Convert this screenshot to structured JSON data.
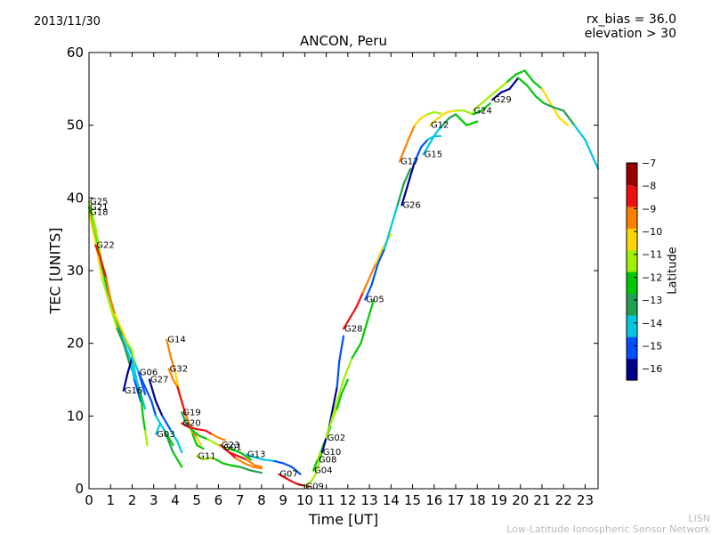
{
  "header": {
    "date": "2013/11/30",
    "rx_bias": "rx_bias = 36.0",
    "elevation": "elevation > 30",
    "title": "ANCON, Peru"
  },
  "credit": {
    "line1": "LISN",
    "line2": "Low-Latitude Ionospheric Sensor Network"
  },
  "colors": {
    "colormap_low_to_high": [
      "#00008f",
      "#0050ff",
      "#00c8e0",
      "#20a050",
      "#00c800",
      "#a0f000",
      "#ffd700",
      "#ff8000",
      "#ee1010",
      "#990000"
    ]
  },
  "chart_data": {
    "type": "line",
    "title": "ANCON, Peru",
    "xlabel": "Time [UT]",
    "ylabel": "TEC [UNITS]",
    "xlim": [
      0,
      23.6
    ],
    "ylim": [
      0,
      60
    ],
    "xticks": [
      0,
      1,
      2,
      3,
      4,
      5,
      6,
      7,
      8,
      9,
      10,
      11,
      12,
      13,
      14,
      15,
      16,
      17,
      18,
      19,
      20,
      21,
      22,
      23
    ],
    "yticks": [
      0,
      10,
      20,
      30,
      40,
      50,
      60
    ],
    "colorbar": {
      "label": "Latitude",
      "range": [
        -16.5,
        -7
      ],
      "ticks": [
        -16,
        -15,
        -14,
        -13,
        -12,
        -11,
        -10,
        -9,
        -8,
        -7
      ]
    },
    "series": [
      {
        "name": "G25",
        "points": [
          [
            0,
            39.5
          ],
          [
            0.3,
            36
          ],
          [
            0.6,
            31
          ],
          [
            0.9,
            27
          ],
          [
            1.2,
            24
          ],
          [
            1.6,
            21
          ],
          [
            1.9,
            19
          ],
          [
            2.3,
            16
          ],
          [
            2.6,
            13
          ]
        ],
        "lat": [
          -11,
          -12,
          -13,
          -14,
          -15
        ]
      },
      {
        "name": "G21",
        "points": [
          [
            0,
            38.7
          ],
          [
            0.4,
            33
          ],
          [
            0.8,
            28
          ],
          [
            1.2,
            24
          ],
          [
            1.5,
            21
          ],
          [
            1.9,
            18
          ],
          [
            2.1,
            15
          ],
          [
            2.4,
            12
          ]
        ],
        "lat": [
          -12,
          -13,
          -14,
          -15
        ]
      },
      {
        "name": "G18",
        "points": [
          [
            0,
            38
          ],
          [
            0.3,
            34
          ],
          [
            0.6,
            29
          ],
          [
            1,
            25
          ],
          [
            1.3,
            22
          ],
          [
            1.6,
            20
          ],
          [
            1.9,
            17
          ],
          [
            2.3,
            14
          ],
          [
            2.6,
            11
          ]
        ],
        "lat": [
          -10,
          -11,
          -13,
          -14
        ]
      },
      {
        "name": "G22",
        "points": [
          [
            0.3,
            33.5
          ],
          [
            0.5,
            32
          ],
          [
            0.8,
            29
          ],
          [
            1,
            26
          ],
          [
            1.2,
            24
          ],
          [
            1.5,
            22
          ],
          [
            1.8,
            20
          ],
          [
            2,
            19
          ],
          [
            2.1,
            17
          ]
        ],
        "lat": [
          -8,
          -9,
          -10,
          -11
        ]
      },
      {
        "name": "G16",
        "points": [
          [
            1.6,
            13.5
          ],
          [
            1.8,
            16
          ],
          [
            2,
            18
          ],
          [
            2.2,
            15
          ],
          [
            2.4,
            13
          ],
          [
            2.5,
            10
          ],
          [
            2.6,
            8
          ],
          [
            2.7,
            6
          ]
        ],
        "lat": [
          -16,
          -14,
          -12,
          -11
        ]
      },
      {
        "name": "G06",
        "points": [
          [
            2.3,
            16
          ],
          [
            2.6,
            14
          ],
          [
            2.9,
            12
          ],
          [
            3.1,
            10
          ],
          [
            3.3,
            9
          ],
          [
            3.5,
            8
          ],
          [
            3.7,
            7
          ],
          [
            3.9,
            6
          ]
        ],
        "lat": [
          -15,
          -14,
          -12
        ]
      },
      {
        "name": "G27",
        "points": [
          [
            2.8,
            15
          ],
          [
            3.1,
            12
          ],
          [
            3.4,
            10
          ],
          [
            3.6,
            9
          ],
          [
            3.8,
            8
          ],
          [
            4.1,
            6.5
          ],
          [
            4.3,
            5
          ]
        ],
        "lat": [
          -16,
          -15,
          -14
        ]
      },
      {
        "name": "G03",
        "points": [
          [
            3.1,
            7.5
          ],
          [
            3.3,
            9
          ],
          [
            3.5,
            8
          ],
          [
            3.7,
            6.5
          ],
          [
            3.9,
            5
          ],
          [
            4.1,
            4
          ],
          [
            4.3,
            3
          ]
        ],
        "lat": [
          -14,
          -13,
          -12
        ]
      },
      {
        "name": "G14",
        "points": [
          [
            3.6,
            20.5
          ],
          [
            3.8,
            18
          ],
          [
            4,
            16
          ],
          [
            4.2,
            13
          ],
          [
            4.4,
            11
          ],
          [
            4.6,
            9
          ],
          [
            4.8,
            7.5
          ],
          [
            5,
            6
          ],
          [
            5.3,
            5.5
          ]
        ],
        "lat": [
          -9,
          -10,
          -11,
          -12
        ]
      },
      {
        "name": "G32",
        "points": [
          [
            3.7,
            16.5
          ],
          [
            3.9,
            15
          ],
          [
            4.1,
            14
          ],
          [
            4.3,
            12
          ],
          [
            4.5,
            10
          ],
          [
            4.7,
            8.5
          ],
          [
            5,
            7
          ],
          [
            5.2,
            6
          ]
        ],
        "lat": [
          -9,
          -8,
          -9,
          -10
        ]
      },
      {
        "name": "G19",
        "points": [
          [
            4.3,
            10.5
          ],
          [
            4.5,
            9
          ],
          [
            4.8,
            8
          ],
          [
            5.1,
            7.3
          ],
          [
            5.5,
            6.8
          ],
          [
            6,
            6
          ],
          [
            6.5,
            5.5
          ],
          [
            7,
            5
          ],
          [
            7.5,
            4
          ]
        ],
        "lat": [
          -13,
          -12,
          -11,
          -12
        ]
      },
      {
        "name": "G20",
        "points": [
          [
            4.3,
            9
          ],
          [
            4.6,
            8.5
          ],
          [
            5,
            8.2
          ],
          [
            5.4,
            8
          ],
          [
            5.7,
            7.5
          ],
          [
            6,
            7
          ],
          [
            6.3,
            6.7
          ]
        ],
        "lat": [
          -8,
          -8,
          -9
        ]
      },
      {
        "name": "G11",
        "points": [
          [
            5,
            4.5
          ],
          [
            5.3,
            4
          ],
          [
            5.6,
            4.3
          ],
          [
            5.9,
            4
          ],
          [
            6.2,
            3.5
          ],
          [
            6.6,
            3.2
          ],
          [
            7,
            3
          ],
          [
            7.5,
            2.5
          ],
          [
            8,
            2.2
          ]
        ],
        "lat": [
          -11,
          -12,
          -13
        ]
      },
      {
        "name": "G23",
        "points": [
          [
            6.1,
            6
          ],
          [
            6.3,
            5.5
          ],
          [
            6.5,
            5
          ],
          [
            6.8,
            4.2
          ],
          [
            7.2,
            3.5
          ],
          [
            7.6,
            3
          ],
          [
            8,
            2.8
          ]
        ],
        "lat": [
          -8,
          -9
        ]
      },
      {
        "name": "G01",
        "points": [
          [
            6.2,
            5.7
          ],
          [
            6.5,
            5
          ],
          [
            6.9,
            4.5
          ],
          [
            7.3,
            4
          ],
          [
            7.7,
            3.2
          ],
          [
            8,
            3
          ]
        ],
        "lat": [
          -8,
          -9
        ]
      },
      {
        "name": "G13",
        "points": [
          [
            7.3,
            4.7
          ],
          [
            7.7,
            4.3
          ],
          [
            8.1,
            4
          ],
          [
            8.6,
            3.8
          ],
          [
            9,
            3.5
          ],
          [
            9.4,
            3
          ],
          [
            9.8,
            2
          ]
        ],
        "lat": [
          -14,
          -15
        ]
      },
      {
        "name": "G07",
        "points": [
          [
            8.8,
            2
          ],
          [
            9.1,
            1.5
          ],
          [
            9.4,
            1
          ],
          [
            9.7,
            0.6
          ],
          [
            10,
            0.4
          ],
          [
            10.2,
            0.3
          ]
        ],
        "lat": [
          -8,
          -7
        ]
      },
      {
        "name": "G09",
        "points": [
          [
            10,
            0.3
          ],
          [
            10.3,
            1
          ],
          [
            10.5,
            2
          ],
          [
            10.7,
            4
          ],
          [
            10.9,
            6
          ],
          [
            11.1,
            8
          ],
          [
            11.3,
            10
          ]
        ],
        "lat": [
          -11,
          -12
        ]
      },
      {
        "name": "G04",
        "points": [
          [
            10.4,
            2.5
          ],
          [
            10.6,
            4
          ],
          [
            10.8,
            5.5
          ],
          [
            11,
            7
          ],
          [
            11.2,
            8.5
          ]
        ],
        "lat": [
          -12
        ]
      },
      {
        "name": "G08",
        "points": [
          [
            10.6,
            4
          ],
          [
            10.9,
            6
          ],
          [
            11.2,
            9
          ],
          [
            11.5,
            11
          ],
          [
            11.7,
            13
          ],
          [
            12,
            15
          ]
        ],
        "lat": [
          -11,
          -12
        ]
      },
      {
        "name": "G10",
        "points": [
          [
            10.8,
            5
          ],
          [
            11.1,
            8
          ],
          [
            11.3,
            11
          ],
          [
            11.5,
            14
          ],
          [
            11.6,
            17.5
          ],
          [
            11.8,
            21
          ]
        ],
        "lat": [
          -16,
          -15
        ]
      },
      {
        "name": "G02",
        "points": [
          [
            11,
            7
          ],
          [
            11.4,
            11
          ],
          [
            11.8,
            15
          ],
          [
            12.2,
            18
          ],
          [
            12.6,
            20
          ],
          [
            12.9,
            23
          ],
          [
            13.2,
            26
          ]
        ],
        "lat": [
          -11,
          -12
        ]
      },
      {
        "name": "G28",
        "points": [
          [
            11.8,
            22
          ],
          [
            12.1,
            23.5
          ],
          [
            12.4,
            25
          ],
          [
            12.7,
            27
          ],
          [
            13,
            29
          ],
          [
            13.3,
            31
          ],
          [
            13.6,
            33
          ],
          [
            14,
            35
          ]
        ],
        "lat": [
          -8,
          -9,
          -10
        ]
      },
      {
        "name": "G05",
        "points": [
          [
            12.8,
            26
          ],
          [
            13.1,
            28
          ],
          [
            13.4,
            31
          ],
          [
            13.7,
            33
          ],
          [
            14,
            36
          ],
          [
            14.3,
            39
          ],
          [
            14.6,
            42
          ],
          [
            14.9,
            44
          ]
        ],
        "lat": [
          -15,
          -14,
          -13
        ]
      },
      {
        "name": "G26",
        "points": [
          [
            14.5,
            39
          ],
          [
            14.8,
            42
          ],
          [
            15.1,
            45
          ],
          [
            15.4,
            47
          ],
          [
            15.7,
            48
          ],
          [
            16,
            48.5
          ],
          [
            16.3,
            48.5
          ]
        ],
        "lat": [
          -16,
          -15,
          -14
        ]
      },
      {
        "name": "G15",
        "points": [
          [
            15.5,
            46
          ],
          [
            15.8,
            47.5
          ],
          [
            16.1,
            49
          ],
          [
            16.4,
            50
          ],
          [
            16.7,
            51
          ],
          [
            17,
            51.5
          ],
          [
            17.5,
            50
          ],
          [
            18,
            50.5
          ]
        ],
        "lat": [
          -14,
          -13,
          -12
        ]
      },
      {
        "name": "G17",
        "points": [
          [
            14.4,
            45
          ],
          [
            14.8,
            48
          ],
          [
            15.1,
            50
          ],
          [
            15.4,
            51
          ],
          [
            15.7,
            51.5
          ],
          [
            16,
            51.8
          ],
          [
            16.3,
            51.6
          ]
        ],
        "lat": [
          -9,
          -10,
          -11
        ]
      },
      {
        "name": "G12",
        "points": [
          [
            15.8,
            50
          ],
          [
            16.2,
            51
          ],
          [
            16.6,
            51.8
          ],
          [
            17,
            52
          ],
          [
            17.4,
            52
          ],
          [
            17.8,
            51.5
          ],
          [
            18.2,
            52
          ],
          [
            18.6,
            53
          ]
        ],
        "lat": [
          -10,
          -11,
          -12
        ]
      },
      {
        "name": "G24",
        "points": [
          [
            17.8,
            52
          ],
          [
            18.2,
            53
          ],
          [
            18.6,
            54
          ],
          [
            19,
            55
          ],
          [
            19.4,
            56
          ],
          [
            19.8,
            57
          ],
          [
            20.2,
            57.5
          ],
          [
            20.6,
            56
          ],
          [
            21,
            55
          ],
          [
            21.4,
            53
          ],
          [
            21.8,
            51
          ],
          [
            22.2,
            50
          ]
        ],
        "lat": [
          -11,
          -12,
          -10
        ]
      },
      {
        "name": "G29",
        "points": [
          [
            18.7,
            53.5
          ],
          [
            19.1,
            54.5
          ],
          [
            19.5,
            55
          ],
          [
            19.9,
            56.5
          ],
          [
            20.3,
            55.5
          ],
          [
            20.7,
            54
          ],
          [
            21.1,
            53
          ],
          [
            21.5,
            52.5
          ],
          [
            22,
            52
          ],
          [
            22.5,
            50
          ],
          [
            23,
            48
          ],
          [
            23.6,
            44
          ]
        ],
        "lat": [
          -16,
          -12,
          -13,
          -14
        ]
      }
    ]
  }
}
